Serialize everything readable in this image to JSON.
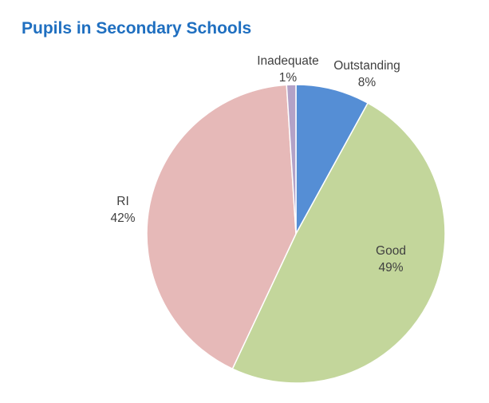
{
  "chart_data": {
    "type": "pie",
    "title": "Pupils in Secondary Schools",
    "slices": [
      {
        "name": "Outstanding",
        "value": 8,
        "label": "8%",
        "color": "#558ed5"
      },
      {
        "name": "Good",
        "value": 49,
        "label": "49%",
        "color": "#c3d69b"
      },
      {
        "name": "RI",
        "value": 42,
        "label": "42%",
        "color": "#e6b9b8"
      },
      {
        "name": "Inadequate",
        "value": 1,
        "label": "1%",
        "color": "#b3a2c7"
      }
    ],
    "start_angle": "12 o'clock",
    "direction": "clockwise",
    "legend": "none",
    "data_labels": "category name and percentage"
  }
}
